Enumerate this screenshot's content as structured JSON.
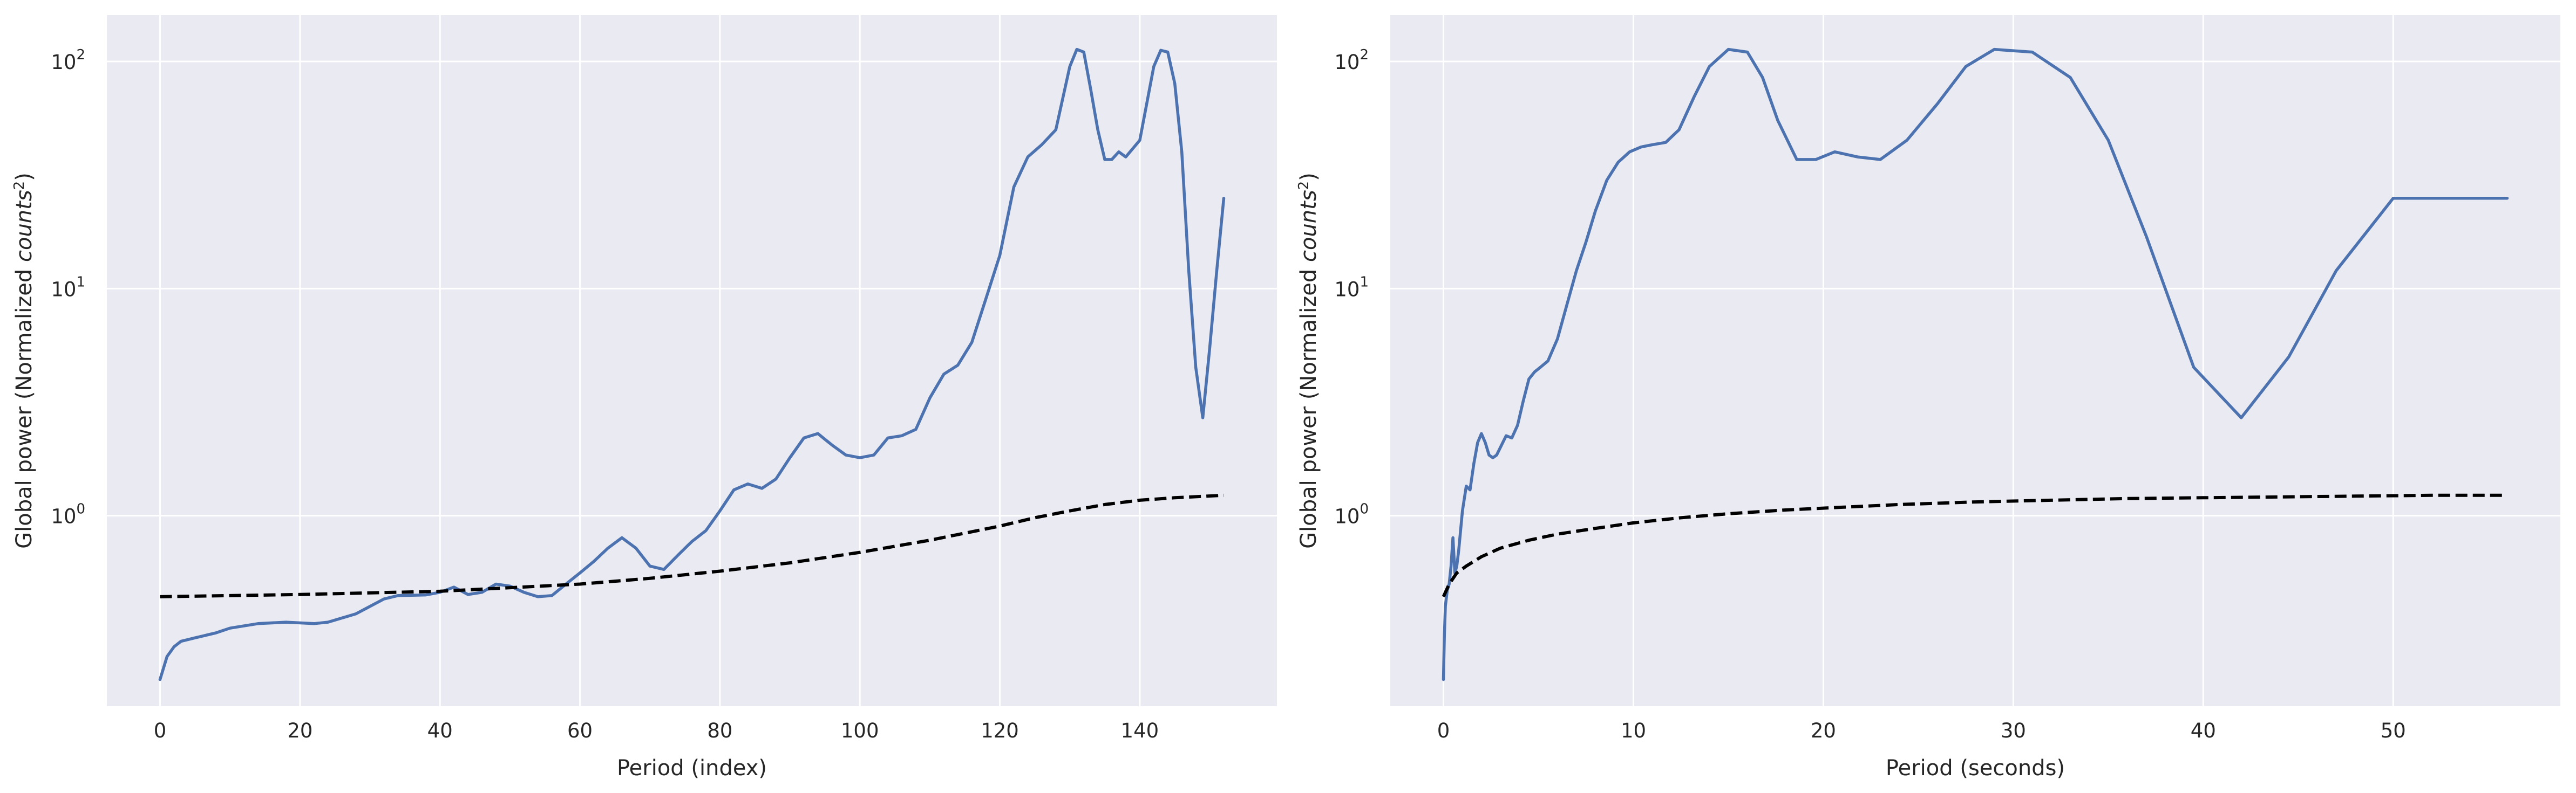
{
  "chart_data": [
    {
      "type": "line",
      "xlabel": "Period (index)",
      "ylabel_prefix": "Global power (Normalized ",
      "ylabel_italic": "counts",
      "ylabel_sup": "2",
      "ylabel_suffix": ")",
      "yscale": "log",
      "xlim": [
        -7.6,
        159.6
      ],
      "ylim": [
        0.145,
        160
      ],
      "xticks": [
        0,
        20,
        40,
        60,
        80,
        100,
        120,
        140
      ],
      "yticks": [
        {
          "value": 1,
          "base": "10",
          "exp": "0"
        },
        {
          "value": 10,
          "base": "10",
          "exp": "1"
        },
        {
          "value": 100,
          "base": "10",
          "exp": "2"
        }
      ],
      "grid": true,
      "series": [
        {
          "style": "solid",
          "color": "#4c72b0",
          "x": [
            0,
            1,
            2,
            3,
            5,
            8,
            10,
            14,
            18,
            22,
            24,
            28,
            32,
            34,
            38,
            40,
            42,
            44,
            46,
            48,
            50,
            52,
            54,
            56,
            58,
            60,
            62,
            64,
            66,
            68,
            70,
            72,
            74,
            76,
            78,
            80,
            82,
            84,
            86,
            88,
            90,
            92,
            94,
            96,
            98,
            100,
            102,
            104,
            106,
            108,
            110,
            112,
            114,
            116,
            118,
            120,
            122,
            124,
            126,
            128,
            130,
            131,
            132,
            133,
            134,
            135,
            136,
            137,
            138,
            140,
            142,
            143,
            144,
            145,
            146,
            147,
            148,
            149,
            150,
            151,
            152
          ],
          "y": [
            0.19,
            0.24,
            0.265,
            0.28,
            0.29,
            0.305,
            0.32,
            0.335,
            0.34,
            0.335,
            0.34,
            0.37,
            0.43,
            0.445,
            0.448,
            0.46,
            0.485,
            0.45,
            0.46,
            0.5,
            0.49,
            0.46,
            0.44,
            0.445,
            0.5,
            0.56,
            0.63,
            0.72,
            0.8,
            0.72,
            0.6,
            0.58,
            0.67,
            0.77,
            0.86,
            1.05,
            1.3,
            1.38,
            1.32,
            1.45,
            1.8,
            2.2,
            2.3,
            2.05,
            1.85,
            1.8,
            1.85,
            2.2,
            2.25,
            2.4,
            3.3,
            4.2,
            4.6,
            5.8,
            9.0,
            14.0,
            28.0,
            38.0,
            43.0,
            50.0,
            95.0,
            113.0,
            110.0,
            75.0,
            50.0,
            37.0,
            37.0,
            40.0,
            38.0,
            45.0,
            95.0,
            112.0,
            110.0,
            80.0,
            40.0,
            12.0,
            4.5,
            2.7,
            5.5,
            12.0,
            25.0
          ]
        },
        {
          "style": "dashed",
          "color": "#000000",
          "x": [
            0,
            20,
            40,
            60,
            70,
            80,
            90,
            100,
            110,
            120,
            125,
            130,
            135,
            140,
            145,
            152
          ],
          "y": [
            0.44,
            0.45,
            0.465,
            0.5,
            0.53,
            0.57,
            0.62,
            0.69,
            0.78,
            0.9,
            0.98,
            1.05,
            1.12,
            1.17,
            1.2,
            1.23
          ]
        }
      ]
    },
    {
      "type": "line",
      "xlabel": "Period (seconds)",
      "ylabel_prefix": "Global power (Normalized ",
      "ylabel_italic": "counts",
      "ylabel_sup": "2",
      "ylabel_suffix": ")",
      "yscale": "log",
      "xlim": [
        -2.8,
        58.8
      ],
      "ylim": [
        0.145,
        160
      ],
      "xticks": [
        0,
        10,
        20,
        30,
        40,
        50
      ],
      "yticks": [
        {
          "value": 1,
          "base": "10",
          "exp": "0"
        },
        {
          "value": 10,
          "base": "10",
          "exp": "1"
        },
        {
          "value": 100,
          "base": "10",
          "exp": "2"
        }
      ],
      "grid": true,
      "series": [
        {
          "style": "solid",
          "color": "#4c72b0",
          "x": [
            0,
            0.05,
            0.1,
            0.2,
            0.3,
            0.4,
            0.5,
            0.6,
            0.7,
            0.8,
            1.0,
            1.2,
            1.4,
            1.6,
            1.8,
            2.0,
            2.2,
            2.4,
            2.6,
            2.8,
            3.0,
            3.3,
            3.6,
            3.9,
            4.2,
            4.5,
            4.8,
            5.1,
            5.5,
            6.0,
            6.5,
            7.0,
            7.5,
            8.0,
            8.6,
            9.2,
            9.8,
            10.4,
            11.0,
            11.7,
            12.4,
            13.2,
            14.0,
            15.0,
            16.0,
            16.8,
            17.6,
            18.6,
            19.6,
            20.6,
            21.8,
            23.0,
            24.4,
            26.0,
            27.5,
            29.0,
            31.0,
            33.0,
            35.0,
            37.0,
            39.5,
            42.0,
            44.5,
            47.0,
            50.0,
            53.0,
            56.0
          ],
          "y": [
            0.19,
            0.3,
            0.4,
            0.47,
            0.5,
            0.6,
            0.8,
            0.56,
            0.6,
            0.7,
            1.05,
            1.35,
            1.3,
            1.7,
            2.1,
            2.3,
            2.1,
            1.85,
            1.8,
            1.85,
            2.0,
            2.25,
            2.2,
            2.5,
            3.2,
            4.0,
            4.3,
            4.5,
            4.8,
            6.0,
            8.5,
            12.0,
            16.0,
            22.0,
            30.0,
            36.0,
            40.0,
            42.0,
            43.0,
            44.0,
            50.0,
            70.0,
            95.0,
            113.0,
            110.0,
            85.0,
            55.0,
            37.0,
            37.0,
            40.0,
            38.0,
            37.0,
            45.0,
            65.0,
            95.0,
            113.0,
            110.0,
            85.0,
            45.0,
            17.0,
            4.5,
            2.7,
            5.0,
            12.0,
            25.0,
            25.0,
            25.0
          ],
          "note": ""
        },
        {
          "style": "dashed",
          "color": "#000000",
          "x": [
            0,
            0.3,
            0.7,
            1.2,
            2,
            3,
            4.5,
            6,
            8,
            10,
            12.5,
            15,
            18,
            21,
            24,
            28,
            32,
            36,
            40,
            44,
            48,
            52,
            56
          ],
          "y": [
            0.44,
            0.5,
            0.56,
            0.6,
            0.66,
            0.72,
            0.78,
            0.83,
            0.88,
            0.93,
            0.98,
            1.02,
            1.06,
            1.09,
            1.12,
            1.15,
            1.17,
            1.19,
            1.2,
            1.21,
            1.22,
            1.23,
            1.23
          ]
        }
      ]
    }
  ]
}
